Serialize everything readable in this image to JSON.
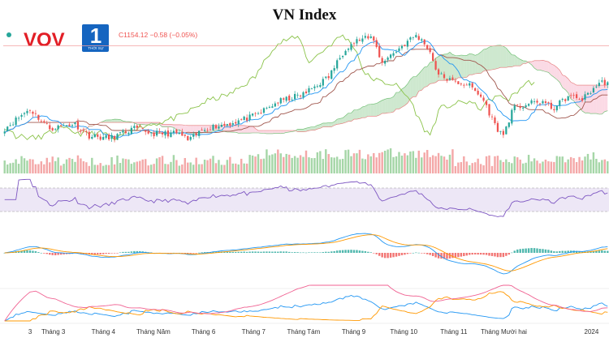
{
  "chart_data": {
    "type": "candlestick",
    "title": "VN Index",
    "legend_text": "C1154.12 −0.58 (−0.05%)",
    "x_tick_labels": [
      "3",
      "Tháng 3",
      "Tháng 4",
      "Tháng Năm",
      "Tháng 6",
      "Tháng 7",
      "Tháng Tám",
      "Tháng 9",
      "Tháng 10",
      "Tháng 11",
      "Tháng Mười hai",
      "2024"
    ],
    "price_anchors": [
      {
        "month": 0.0,
        "price": 1060
      },
      {
        "month": 0.5,
        "price": 1100
      },
      {
        "month": 0.9,
        "price": 1060
      },
      {
        "month": 1.4,
        "price": 1070
      },
      {
        "month": 1.7,
        "price": 1045
      },
      {
        "month": 2.1,
        "price": 1040
      },
      {
        "month": 2.6,
        "price": 1060
      },
      {
        "month": 3.0,
        "price": 1050
      },
      {
        "month": 3.5,
        "price": 1050
      },
      {
        "month": 3.7,
        "price": 1035
      },
      {
        "month": 4.0,
        "price": 1060
      },
      {
        "month": 4.5,
        "price": 1070
      },
      {
        "month": 5.0,
        "price": 1085
      },
      {
        "month": 5.5,
        "price": 1115
      },
      {
        "month": 6.0,
        "price": 1130
      },
      {
        "month": 6.5,
        "price": 1165
      },
      {
        "month": 6.85,
        "price": 1225
      },
      {
        "month": 7.1,
        "price": 1240
      },
      {
        "month": 7.4,
        "price": 1245
      },
      {
        "month": 7.55,
        "price": 1195
      },
      {
        "month": 7.7,
        "price": 1205
      },
      {
        "month": 8.0,
        "price": 1230
      },
      {
        "month": 8.25,
        "price": 1250
      },
      {
        "month": 8.5,
        "price": 1225
      },
      {
        "month": 8.7,
        "price": 1170
      },
      {
        "month": 9.0,
        "price": 1155
      },
      {
        "month": 9.3,
        "price": 1150
      },
      {
        "month": 9.6,
        "price": 1120
      },
      {
        "month": 9.85,
        "price": 1065
      },
      {
        "month": 10.0,
        "price": 1045
      },
      {
        "month": 10.2,
        "price": 1100
      },
      {
        "month": 10.5,
        "price": 1110
      },
      {
        "month": 10.8,
        "price": 1115
      },
      {
        "month": 11.0,
        "price": 1100
      },
      {
        "month": 11.3,
        "price": 1125
      },
      {
        "month": 11.6,
        "price": 1120
      },
      {
        "month": 11.9,
        "price": 1150
      },
      {
        "month": 12.0,
        "price": 1154.12
      }
    ],
    "indicators": [
      "volume",
      "RSI",
      "MACD",
      "DMI"
    ],
    "colors": {
      "up": "#26a69a",
      "down": "#ef5350",
      "cloud_up": "#a5d6a7",
      "cloud_down": "#f8bbd0",
      "lagging": "#8bc34a",
      "conversion": "#2196f3",
      "base": "#a1584f",
      "rsi": "#7e57c2",
      "macd": "#2196f3",
      "signal": "#ff9800",
      "dmi_plus": "#2196f3",
      "dmi_minus": "#ff9800",
      "adx": "#f06292"
    }
  },
  "logo": {
    "vov": "VOV",
    "channel": "1",
    "subtitle": "THỜI SỰ"
  }
}
